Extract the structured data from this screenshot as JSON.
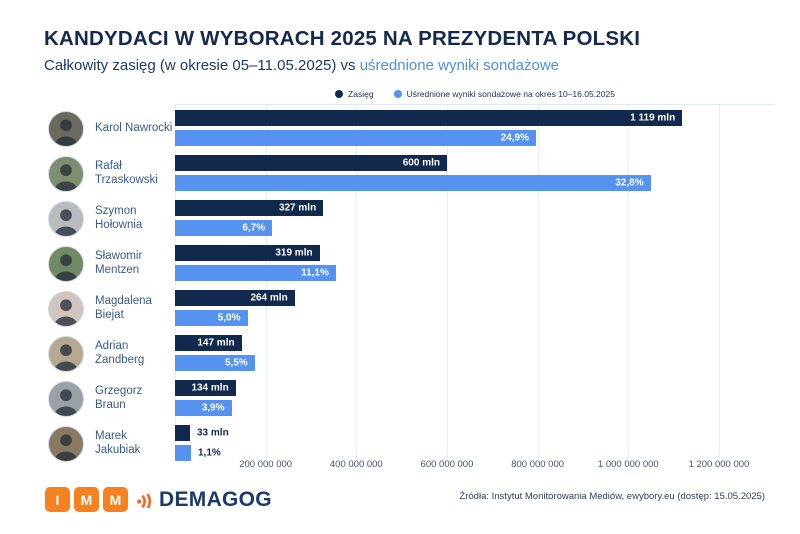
{
  "header": {
    "title": "KANDYDACI W WYBORACH 2025 NA PREZYDENTA POLSKI",
    "subtitle_plain": "Całkowity zasięg (w okresie 05–11.05.2025) vs ",
    "subtitle_highlight": "uśrednione wyniki sondażowe"
  },
  "legend": {
    "series1_label": "Zasięg",
    "series2_label": "Uśrednione wyniki sondażowe na okres 10–16.05.2025"
  },
  "colors": {
    "navy": "#12294e",
    "blue": "#5693f0",
    "title": "#14294d",
    "highlight": "#4a90e2",
    "orange": "#f5811f",
    "demagog_orange": "#f26724",
    "demagog_navy": "#1d3a6e"
  },
  "candidates": [
    {
      "name": "Karol Nawrocki",
      "avatar_bg": "#6b6a5e"
    },
    {
      "name": "Rafał Trzaskowski",
      "avatar_bg": "#7d8f6f"
    },
    {
      "name": "Szymon Hołownia",
      "avatar_bg": "#b9bcbe"
    },
    {
      "name": "Sławomir Mentzen",
      "avatar_bg": "#6f8a64"
    },
    {
      "name": "Magdalena Biejat",
      "avatar_bg": "#cfc6c0"
    },
    {
      "name": "Adrian Zandberg",
      "avatar_bg": "#b7a98f"
    },
    {
      "name": "Grzegorz Braun",
      "avatar_bg": "#9aa0a6"
    },
    {
      "name": "Marek Jakubiak",
      "avatar_bg": "#8a7a63"
    }
  ],
  "chart_data": {
    "type": "bar",
    "orientation": "horizontal",
    "title": "KANDYDACI W WYBORACH 2025 NA PREZYDENTA POLSKI",
    "subtitle": "Całkowity zasięg (w okresie 05–11.05.2025) vs uśrednione wyniki sondażowe",
    "categories": [
      "Karol Nawrocki",
      "Rafał Trzaskowski",
      "Szymon Hołownia",
      "Sławomir Mentzen",
      "Magdalena Biejat",
      "Adrian Zandberg",
      "Grzegorz Braun",
      "Marek Jakubiak"
    ],
    "series": [
      {
        "name": "Zasięg",
        "unit": "mln",
        "color": "#12294e",
        "values": [
          1119,
          600,
          327,
          319,
          264,
          147,
          134,
          33
        ],
        "labels": [
          "1 119 mln",
          "600 mln",
          "327 mln",
          "319 mln",
          "264 mln",
          "147 mln",
          "134 mln",
          "33 mln"
        ]
      },
      {
        "name": "Uśrednione wyniki sondażowe na okres 10–16.05.2025",
        "unit": "%",
        "color": "#5693f0",
        "values": [
          24.9,
          32.8,
          6.7,
          11.1,
          5.0,
          5.5,
          3.9,
          1.1
        ],
        "labels": [
          "24,9%",
          "32,8%",
          "6,7%",
          "11,1%",
          "5,0%",
          "5,5%",
          "3,9%",
          "1,1%"
        ]
      }
    ],
    "x_axis": {
      "tick_values": [
        200000000,
        400000000,
        600000000,
        800000000,
        1000000000,
        1200000000
      ],
      "tick_labels": [
        "200 000 000",
        "400 000 000",
        "600 000 000",
        "800 000 000",
        "1 000 000 000",
        "1 200 000 000"
      ],
      "range_mln": [
        0,
        1324
      ],
      "grid": true
    },
    "layout_hints": {
      "legend_position": "top-center",
      "scale_mln_per_percent": 32
    }
  },
  "footer": {
    "imm_letters": [
      "I",
      "M",
      "M"
    ],
    "demagog_text": "DEMAGOG",
    "source": "Źródła: Instytut Monitorowania Mediów, ewybory.eu (dostęp: 15.05.2025)"
  }
}
